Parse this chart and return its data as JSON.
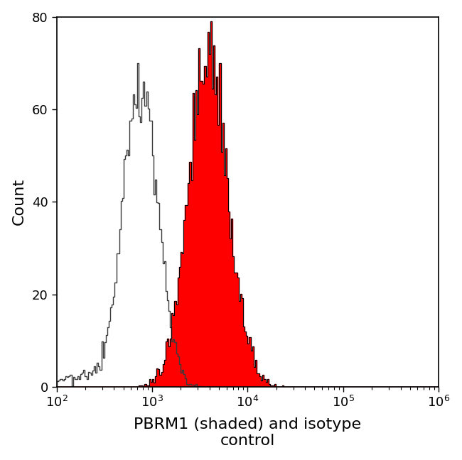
{
  "title": "",
  "xlabel": "PBRM1 (shaded) and isotype\ncontrol",
  "ylabel": "Count",
  "xlim_log": [
    2,
    6
  ],
  "ylim": [
    0,
    80
  ],
  "yticks": [
    0,
    20,
    40,
    60,
    80
  ],
  "background_color": "#ffffff",
  "isotype_color": "#3a3a3a",
  "pbrm1_fill_color": "#ff0000",
  "pbrm1_line_color": "#000000",
  "xlabel_fontsize": 16,
  "ylabel_fontsize": 16,
  "tick_fontsize": 13,
  "isotype_peak_log": 2.88,
  "isotype_peak_count": 70,
  "isotype_log_std": 0.18,
  "pbrm1_peak_log": 3.58,
  "pbrm1_peak_count": 79,
  "pbrm1_log_std": 0.2
}
